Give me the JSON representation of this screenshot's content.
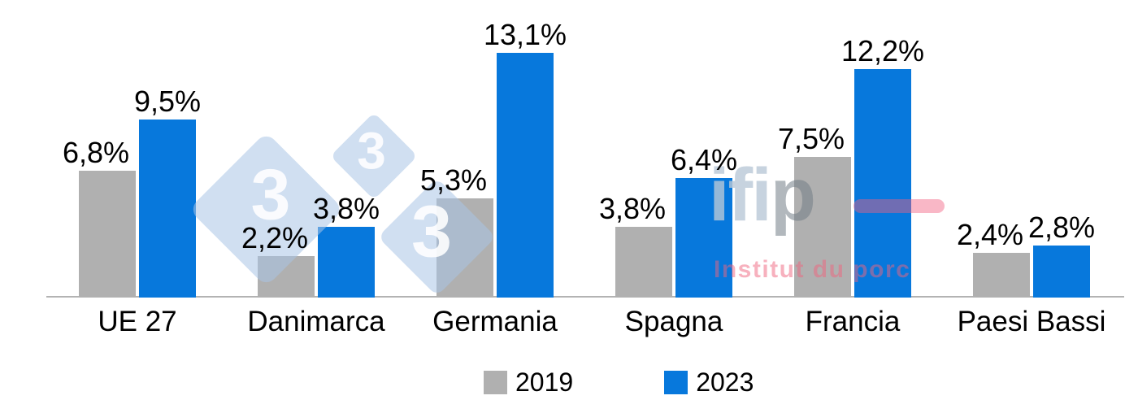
{
  "chart_data": {
    "type": "bar",
    "title": "",
    "xlabel": "",
    "ylabel": "",
    "categories": [
      "UE 27",
      "Danimarca",
      "Germania",
      "Spagna",
      "Francia",
      "Paesi Bassi"
    ],
    "series": [
      {
        "name": "2019",
        "color": "#b0b0b0",
        "values": [
          6.8,
          2.2,
          5.3,
          3.8,
          7.5,
          2.4
        ],
        "labels": [
          "6,8%",
          "2,2%",
          "5,3%",
          "3,8%",
          "7,5%",
          "2,4%"
        ]
      },
      {
        "name": "2023",
        "color": "#0778dc",
        "values": [
          9.5,
          3.8,
          13.1,
          6.4,
          12.2,
          2.8
        ],
        "labels": [
          "9,5%",
          "3,8%",
          "13,1%",
          "6,4%",
          "12,2%",
          "2,8%"
        ]
      }
    ],
    "ylim": [
      0,
      14
    ],
    "value_suffix": "%",
    "decimal_separator": ",",
    "grid": false,
    "y_axis_visible": false,
    "legend_position": "bottom"
  },
  "legend": {
    "items": [
      {
        "label": "2019",
        "color": "#b0b0b0"
      },
      {
        "label": "2023",
        "color": "#0778dc"
      }
    ]
  },
  "axis": {
    "color": "#b3b3b3"
  },
  "watermark": {
    "diamond_text": "3",
    "logo_text_ifi": "ifi",
    "logo_text_p": "p",
    "logo_subtext": "Institut du porc",
    "colors": {
      "diamond": "#a9c5e5",
      "logo_gray": "#8a9aa8",
      "logo_pink": "#f06080"
    }
  }
}
